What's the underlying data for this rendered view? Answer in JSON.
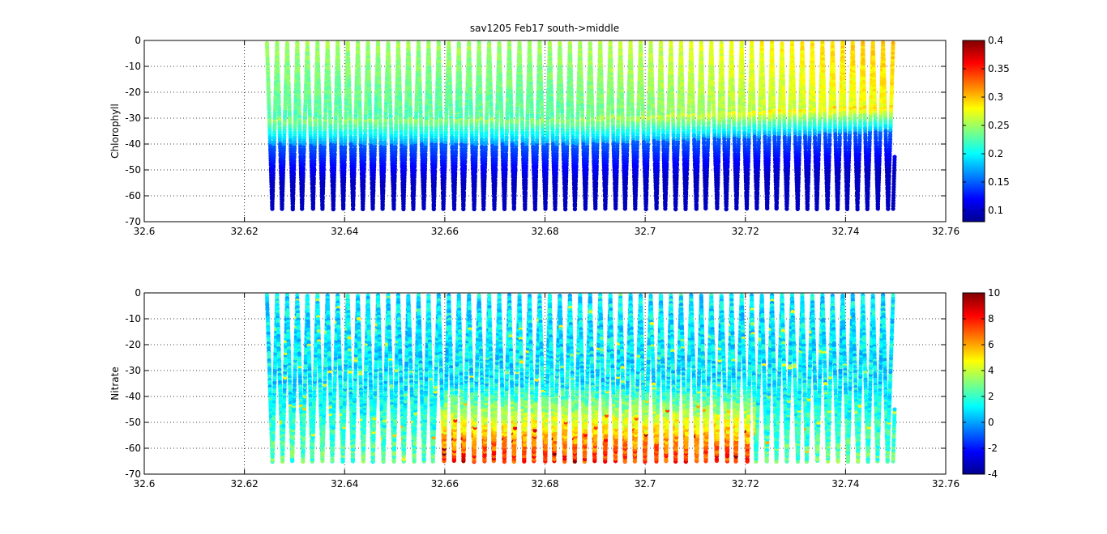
{
  "figure": {
    "title": "sav1205 Feb17 south->middle"
  },
  "chart_data": [
    {
      "type": "scatter",
      "ylabel": "Chlorophyll",
      "xlabel": "",
      "xlim": [
        32.6,
        32.76
      ],
      "ylim": [
        -70,
        0
      ],
      "xticks": [
        "32.6",
        "32.62",
        "32.64",
        "32.66",
        "32.68",
        "32.7",
        "32.72",
        "32.74",
        "32.76"
      ],
      "yticks": [
        "0",
        "-10",
        "-20",
        "-30",
        "-40",
        "-50",
        "-60",
        "-70"
      ],
      "grid": true,
      "colormap": "jet",
      "clim": [
        0.08,
        0.4
      ],
      "colorbar_ticks": [
        "0.4",
        "0.35",
        "0.3",
        "0.25",
        "0.2",
        "0.15",
        "0.1"
      ],
      "colorbar_values": [
        0.4,
        0.35,
        0.3,
        0.25,
        0.2,
        0.15,
        0.1
      ],
      "profiles": {
        "x_start": 32.6245,
        "x_end": 32.7495,
        "count": 62,
        "depth_range": [
          -65,
          -1
        ],
        "end_depth": -45
      },
      "description_values": {
        "surface_value_south": 0.25,
        "surface_value_north": 0.3,
        "deep_value": 0.1,
        "transition_depth_south": -30,
        "transition_depth_north": -25
      }
    },
    {
      "type": "scatter",
      "ylabel": "Nitrate",
      "xlabel": "",
      "xlim": [
        32.6,
        32.76
      ],
      "ylim": [
        -70,
        0
      ],
      "xticks": [
        "32.6",
        "32.62",
        "32.64",
        "32.66",
        "32.68",
        "32.7",
        "32.72",
        "32.74",
        "32.76"
      ],
      "yticks": [
        "0",
        "-10",
        "-20",
        "-30",
        "-40",
        "-50",
        "-60",
        "-70"
      ],
      "grid": true,
      "colormap": "jet",
      "clim": [
        -4,
        10
      ],
      "colorbar_ticks": [
        "10",
        "8",
        "6",
        "4",
        "2",
        "0",
        "-2",
        "-4"
      ],
      "colorbar_values": [
        10,
        8,
        6,
        4,
        2,
        0,
        -2,
        -4
      ],
      "profiles": {
        "x_start": 32.6245,
        "x_end": 32.7495,
        "count": 62,
        "depth_range": [
          -65,
          -1
        ],
        "end_depth": -45
      },
      "description_values": {
        "upper_value": 1,
        "deep_value_south": 2.5,
        "deep_value_middle": 7.5
      }
    }
  ]
}
